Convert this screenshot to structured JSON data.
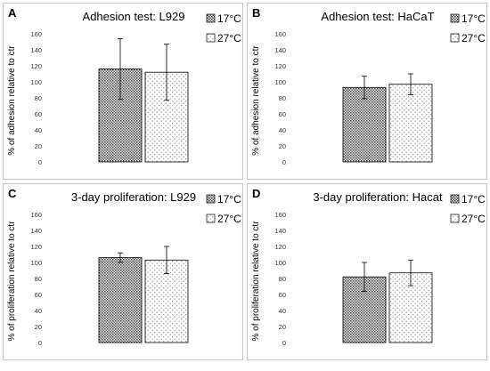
{
  "chart_data": [
    {
      "type": "bar",
      "panel_letter": "A",
      "title": "Adhesion test: L929",
      "ylabel": "% of adhesion relative to ctr",
      "ylim": [
        0,
        160
      ],
      "yticks": [
        0,
        20,
        40,
        60,
        80,
        100,
        120,
        140,
        160
      ],
      "grid": false,
      "legend_position": "top-right",
      "series": [
        {
          "name": "17°C",
          "value": 116,
          "error": 38,
          "pattern": "dense"
        },
        {
          "name": "27°C",
          "value": 112,
          "error": 35,
          "pattern": "sparse"
        }
      ]
    },
    {
      "type": "bar",
      "panel_letter": "B",
      "title": "Adhesion test: HaCaT",
      "ylabel": "% of adhesion relative to ctr",
      "ylim": [
        0,
        160
      ],
      "yticks": [
        0,
        20,
        40,
        60,
        80,
        100,
        120,
        140,
        160
      ],
      "grid": false,
      "legend_position": "top-right",
      "series": [
        {
          "name": "17°C",
          "value": 93,
          "error": 14,
          "pattern": "dense"
        },
        {
          "name": "27°C",
          "value": 97,
          "error": 13,
          "pattern": "sparse"
        }
      ]
    },
    {
      "type": "bar",
      "panel_letter": "C",
      "title": "3-day proliferation:  L929",
      "ylabel": "% of proliferation relative to ctr",
      "ylim": [
        0,
        160
      ],
      "yticks": [
        0,
        20,
        40,
        60,
        80,
        100,
        120,
        140,
        160
      ],
      "grid": false,
      "legend_position": "top-right",
      "series": [
        {
          "name": "17°C",
          "value": 106,
          "error": 6,
          "pattern": "dense"
        },
        {
          "name": "27°C",
          "value": 103,
          "error": 17,
          "pattern": "sparse"
        }
      ]
    },
    {
      "type": "bar",
      "panel_letter": "D",
      "title": "3-day proliferation:  Hacat",
      "ylabel": "% of proliferation relative to ctr",
      "ylim": [
        0,
        160
      ],
      "yticks": [
        0,
        20,
        40,
        60,
        80,
        100,
        120,
        140,
        160
      ],
      "grid": false,
      "legend_position": "top-right",
      "series": [
        {
          "name": "17°C",
          "value": 82,
          "error": 18,
          "pattern": "dense"
        },
        {
          "name": "27°C",
          "value": 87,
          "error": 16,
          "pattern": "sparse"
        }
      ]
    }
  ],
  "colors": {
    "border": "#c8c8c8",
    "bar_outline": "#000000",
    "dense_dot": "#333333",
    "sparse_dot": "#7a7a7a",
    "text": "#000000",
    "tick_text": "#333333"
  }
}
